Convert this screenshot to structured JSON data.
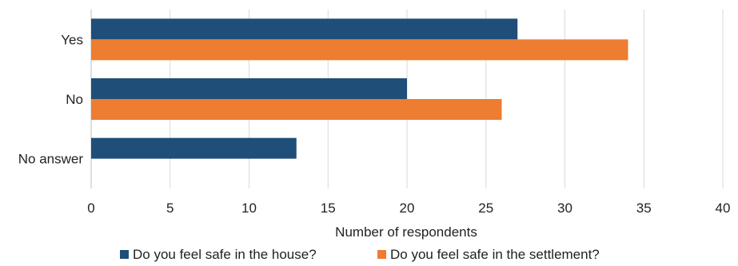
{
  "chart_data": {
    "type": "bar",
    "orientation": "horizontal",
    "categories": [
      "Yes",
      "No",
      "No answer"
    ],
    "series": [
      {
        "name": "Do you feel safe in the house?",
        "values": [
          27,
          20,
          13
        ],
        "color": "#1F4E79"
      },
      {
        "name": "Do you feel safe in the settlement?",
        "values": [
          34,
          26,
          0
        ],
        "color": "#ED7D31"
      }
    ],
    "xlabel": "Number  of respondents",
    "ylabel": "",
    "xlim": [
      0,
      40
    ],
    "xticks": [
      0,
      5,
      10,
      15,
      20,
      25,
      30,
      35,
      40
    ],
    "grid": true,
    "legend_position": "bottom"
  }
}
